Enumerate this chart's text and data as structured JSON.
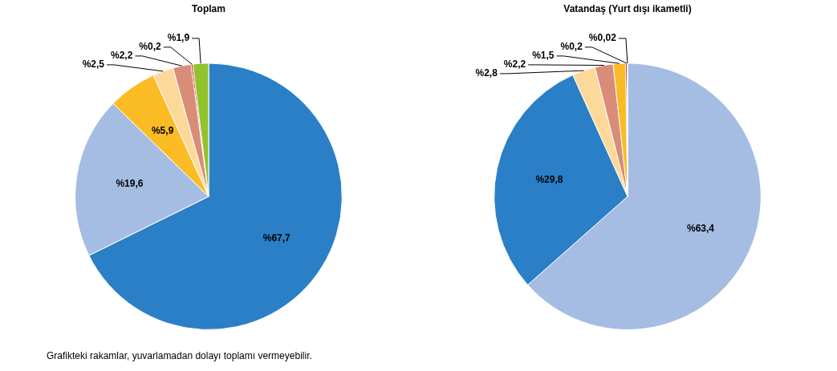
{
  "chart_data": [
    {
      "type": "pie",
      "title": "Toplam",
      "categories": [
        null,
        null,
        null,
        null,
        null,
        null,
        null
      ],
      "values": [
        67.7,
        19.6,
        5.9,
        2.5,
        2.2,
        0.2,
        1.9
      ],
      "colors": [
        "#2a7fc6",
        "#a5bde3",
        "#fbbb24",
        "#fdd999",
        "#d98c78",
        "#c00000",
        "#92c32c"
      ],
      "value_labels": [
        "%67,7",
        "%19,6",
        "%5,9",
        "%2,5",
        "%2,2",
        "%0,2",
        "%1,9"
      ],
      "legend": false,
      "annotations": [
        "Grafikteki rakamlar, yuvarlamadan dolayı toplamı vermeyebilir."
      ]
    },
    {
      "type": "pie",
      "title": "Vatandaş (Yurt dışı ikametli)",
      "categories": [
        null,
        null,
        null,
        null,
        null,
        null,
        null
      ],
      "values": [
        63.4,
        29.8,
        2.8,
        2.2,
        1.5,
        0.2,
        0.02
      ],
      "colors": [
        "#a5bde3",
        "#2a7fc6",
        "#fdd999",
        "#d98c78",
        "#fbbb24",
        "#c00000",
        "#92c32c"
      ],
      "value_labels": [
        "%63,4",
        "%29,8",
        "%2,8",
        "%2,2",
        "%1,5",
        "%0,2",
        "%0,02"
      ],
      "legend": false
    }
  ]
}
